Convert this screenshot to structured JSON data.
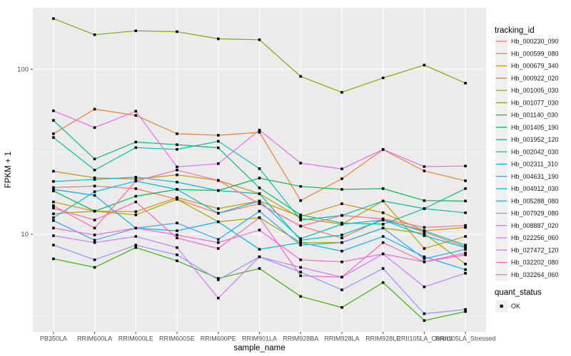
{
  "figure": {
    "bg": "#ffffff",
    "panel_bg": "#EBEBEB",
    "grid_color": "#FFFFFF",
    "tick_color": "#333333",
    "axis_text_color": "#4D4D4D",
    "title_text_color": "#000000",
    "marker_color": "#000000",
    "legend_key_bg": "#F0F0F0"
  },
  "axes": {
    "x_title": "sample_name",
    "y_title": "FPKM + 1",
    "y_scale": "log10",
    "y_major_ticks": [
      {
        "label": "100",
        "value": 100
      },
      {
        "label": "10",
        "value": 10
      }
    ],
    "y_minor_values": [
      31.623,
      3.1623
    ]
  },
  "legend": {
    "tracking_title": "tracking_id",
    "quant_title": "quant_status",
    "quant_ok_label": "OK"
  },
  "chart_data": {
    "type": "line",
    "log_y": true,
    "x_categories": [
      "PB350LA",
      "RRIM600LA",
      "RRIM600LE",
      "RRIM600SE",
      "RRIM600PE",
      "RRIM901LA",
      "RRIM928BA",
      "RRIM928LA",
      "RRIM928LE",
      "RRII105LA_Control",
      "RRII105LA_Stressed"
    ],
    "ylim": [
      2.6,
      236
    ],
    "series": [
      {
        "name": "Hb_000230_090",
        "color": "#F8766D",
        "values": [
          19.2,
          19.6,
          18.9,
          16.3,
          13.4,
          15.3,
          11.2,
          9.5,
          12.4,
          10.3,
          8.4
        ]
      },
      {
        "name": "Hb_000599_080",
        "color": "#EA8331",
        "values": [
          40.7,
          57.3,
          52.5,
          40.7,
          39.8,
          41.5,
          16.0,
          21.7,
          32.6,
          24.2,
          21.1
        ]
      },
      {
        "name": "Hb_000679_340",
        "color": "#D89000",
        "values": [
          15.7,
          13.8,
          13.7,
          16.7,
          14.3,
          15.9,
          12.8,
          15.3,
          13.5,
          10.5,
          11.0
        ]
      },
      {
        "name": "Hb_000922_020",
        "color": "#C09B00",
        "values": [
          24.1,
          22.0,
          21.6,
          22.9,
          21.2,
          17.6,
          12.5,
          11.5,
          15.9,
          8.2,
          9.7
        ]
      },
      {
        "name": "Hb_001005_030",
        "color": "#A3A500",
        "values": [
          13.3,
          13.8,
          13.1,
          16.3,
          11.9,
          12.6,
          8.9,
          8.9,
          10.9,
          10.1,
          6.6
        ]
      },
      {
        "name": "Hb_001077_030",
        "color": "#7CAE00",
        "values": [
          203,
          162,
          171,
          169,
          153,
          151,
          90.5,
          72.5,
          88.7,
          106,
          82.4
        ]
      },
      {
        "name": "Hb_001140_030",
        "color": "#39B600",
        "values": [
          7.1,
          6.3,
          8.3,
          6.9,
          5.4,
          6.2,
          4.2,
          3.6,
          5.1,
          3.0,
          3.4
        ]
      },
      {
        "name": "Hb_001405_190",
        "color": "#00BB4E",
        "values": [
          18.3,
          13.8,
          17.0,
          18.7,
          18.4,
          21.9,
          19.5,
          18.7,
          18.9,
          16.0,
          15.9
        ]
      },
      {
        "name": "Hb_001952_120",
        "color": "#00BF7D",
        "values": [
          49.0,
          28.6,
          36.2,
          34.9,
          33.4,
          19.1,
          13.1,
          11.7,
          11.5,
          14.3,
          18.9
        ]
      },
      {
        "name": "Hb_002042_030",
        "color": "#00C1A3",
        "values": [
          38.6,
          24.5,
          33.5,
          32.7,
          36.6,
          25.0,
          12.2,
          13.0,
          15.9,
          14.3,
          13.5
        ]
      },
      {
        "name": "Hb_002311_310",
        "color": "#00BFC4",
        "values": [
          20.9,
          21.5,
          22.2,
          20.7,
          18.4,
          17.6,
          9.2,
          9.9,
          12.2,
          10.5,
          8.6
        ]
      },
      {
        "name": "Hb_004631_190",
        "color": "#00BAE0",
        "values": [
          12.6,
          18.1,
          21.0,
          18.7,
          13.4,
          15.9,
          9.4,
          11.5,
          12.2,
          9.8,
          8.3
        ]
      },
      {
        "name": "Hb_004912_030",
        "color": "#00B0F6",
        "values": [
          18.7,
          17.2,
          10.9,
          10.5,
          11.9,
          8.1,
          8.9,
          7.9,
          9.7,
          7.3,
          6.1
        ]
      },
      {
        "name": "Hb_005288_080",
        "color": "#35A2FF",
        "values": [
          12.1,
          9.2,
          10.9,
          11.7,
          9.3,
          13.8,
          8.6,
          8.9,
          10.9,
          7.1,
          8.1
        ]
      },
      {
        "name": "Hb_007929_080",
        "color": "#9590FF",
        "values": [
          8.6,
          7.0,
          8.6,
          7.5,
          5.3,
          7.3,
          5.9,
          4.6,
          6.2,
          3.3,
          3.5
        ]
      },
      {
        "name": "Hb_008887_020",
        "color": "#C77CFF",
        "values": [
          9.8,
          8.9,
          9.7,
          8.3,
          4.1,
          7.3,
          6.3,
          5.5,
          7.6,
          4.8,
          5.8
        ]
      },
      {
        "name": "Hb_022256_060",
        "color": "#E76BF3",
        "values": [
          56.0,
          44.3,
          55.7,
          25.6,
          26.8,
          42.8,
          27.0,
          24.9,
          32.7,
          25.7,
          25.9
        ]
      },
      {
        "name": "Hb_027472_120",
        "color": "#FA62DB",
        "values": [
          10.9,
          9.9,
          10.9,
          9.9,
          8.9,
          10.6,
          7.0,
          6.8,
          7.6,
          6.8,
          7.5
        ]
      },
      {
        "name": "Hb_032202_080",
        "color": "#FF62BC",
        "values": [
          14.4,
          12.2,
          15.7,
          9.5,
          8.2,
          12.6,
          5.6,
          5.5,
          8.9,
          6.8,
          7.7
        ]
      },
      {
        "name": "Hb_032264_060",
        "color": "#FF6A98",
        "values": [
          14.9,
          10.9,
          21.0,
          24.5,
          21.2,
          15.3,
          11.2,
          13.0,
          12.4,
          11.0,
          11.3
        ]
      }
    ]
  }
}
